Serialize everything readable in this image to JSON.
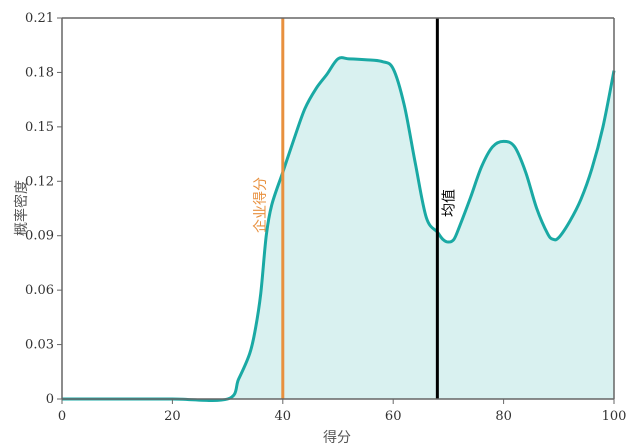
{
  "chart_data": {
    "type": "area",
    "xlabel": "得分",
    "ylabel": "概率密度",
    "xlim": [
      0,
      100
    ],
    "ylim": [
      0,
      0.21
    ],
    "x_ticks": [
      0,
      20,
      40,
      60,
      80,
      100
    ],
    "y_ticks": [
      0,
      0.03,
      0.06,
      0.09,
      0.12,
      0.15,
      0.18,
      0.21
    ],
    "y_tick_labels": [
      "0",
      "0.03",
      "0.06",
      "0.09",
      "0.12",
      "0.15",
      "0.18",
      "0.21"
    ],
    "grid": false,
    "series": [
      {
        "color": "#1aa9a4",
        "fill": "#d9f1f0",
        "x": [
          0,
          10,
          20,
          30,
          32,
          34,
          35,
          36,
          37,
          38,
          40,
          42,
          44,
          46,
          48,
          50,
          52,
          55,
          58,
          60,
          62,
          64,
          66,
          68,
          69,
          70,
          71,
          72,
          74,
          76,
          78,
          80,
          82,
          84,
          86,
          88,
          89,
          90,
          92,
          94,
          96,
          98,
          100
        ],
        "y": [
          0,
          0,
          0,
          0,
          0.011,
          0.025,
          0.038,
          0.058,
          0.09,
          0.107,
          0.125,
          0.143,
          0.16,
          0.171,
          0.179,
          0.1875,
          0.1875,
          0.187,
          0.186,
          0.182,
          0.162,
          0.13,
          0.1,
          0.092,
          0.088,
          0.0865,
          0.088,
          0.095,
          0.111,
          0.128,
          0.139,
          0.142,
          0.139,
          0.125,
          0.105,
          0.091,
          0.088,
          0.089,
          0.098,
          0.11,
          0.127,
          0.15,
          0.181
        ]
      }
    ],
    "reference_lines": [
      {
        "label": "企业得分",
        "x": 40,
        "color": "#e8903e"
      },
      {
        "label": "均值",
        "x": 68,
        "color": "#000000"
      }
    ]
  }
}
